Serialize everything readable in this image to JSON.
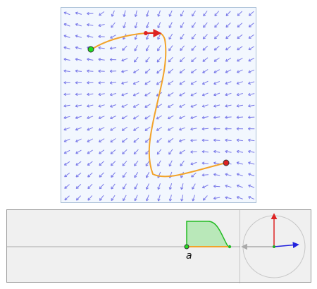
{
  "vector_field": {
    "arrow_color": "#7b7be9",
    "background_color": "#f2f7fe",
    "grid_columns": 17,
    "grid_rows": 17
  },
  "curve": {
    "color": "#f2a32a",
    "start_point_color": "#22dd22",
    "end_point_color": "#dd2222",
    "marker_color": "#dd2222"
  },
  "integral_panel": {
    "param_label": "a",
    "fill_color": "#b9e8b9",
    "profile_color": "#22bb22",
    "axis_color": "#aaaaaa",
    "segment_color": "#f2a32a"
  },
  "dial_panel": {
    "circle_color": "#c6c6c6",
    "tangent_color": "#dd2222",
    "field_color": "#2222dd",
    "gray_arrow_color": "#aaaaaa",
    "center_color": "#22aa22"
  }
}
